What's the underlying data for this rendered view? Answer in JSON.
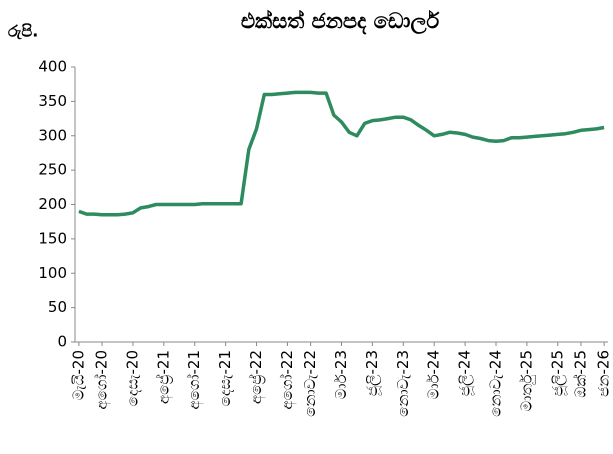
{
  "chart_data": {
    "type": "line",
    "title": "එක්සත් ජනපද ඩොලර්",
    "ylabel": "රුපි.",
    "categories": [
      "මැයි-20",
      null,
      null,
      "අගෝ-20",
      null,
      null,
      null,
      "දෙසැ-20",
      null,
      null,
      null,
      "අප්‍රේ-21",
      null,
      null,
      null,
      "අගෝ-21",
      null,
      null,
      null,
      "දෙසැ-21",
      null,
      null,
      null,
      "අප්‍රේ-22",
      null,
      null,
      null,
      "අගෝ-22",
      null,
      null,
      "නොවැ-22",
      null,
      null,
      null,
      "මාර්-23",
      null,
      null,
      null,
      "ජූලි-23",
      null,
      null,
      null,
      "නොවැ-23",
      null,
      null,
      null,
      "මාර්-24",
      null,
      null,
      null,
      "ජූලි-24",
      null,
      null,
      null,
      "නොවැ-24",
      null,
      null,
      null,
      "මාර්තු-25",
      null,
      null,
      null,
      "ජූලි-25",
      null,
      null,
      "ඔක්-25",
      null,
      null,
      "ජන-26"
    ],
    "series": [
      {
        "name": "එක්සත් ජනපද ඩොලර්",
        "color": "#2e8b5f",
        "values": [
          190,
          186,
          186,
          185,
          185,
          185,
          186,
          188,
          195,
          197,
          200,
          200,
          200,
          200,
          200,
          200,
          201,
          201,
          201,
          201,
          201,
          201,
          280,
          310,
          360,
          360,
          361,
          362,
          363,
          363,
          363,
          362,
          362,
          330,
          320,
          305,
          300,
          318,
          322,
          323,
          325,
          327,
          327,
          323,
          315,
          308,
          300,
          302,
          305,
          304,
          302,
          298,
          296,
          293,
          292,
          293,
          297,
          297,
          298,
          299,
          300,
          301,
          302,
          303,
          305,
          308,
          309,
          310,
          312
        ]
      }
    ],
    "ylim": [
      0,
      400
    ],
    "yticks": [
      0,
      50,
      100,
      150,
      200,
      250,
      300,
      350,
      400
    ],
    "grid": false,
    "legend": false
  }
}
